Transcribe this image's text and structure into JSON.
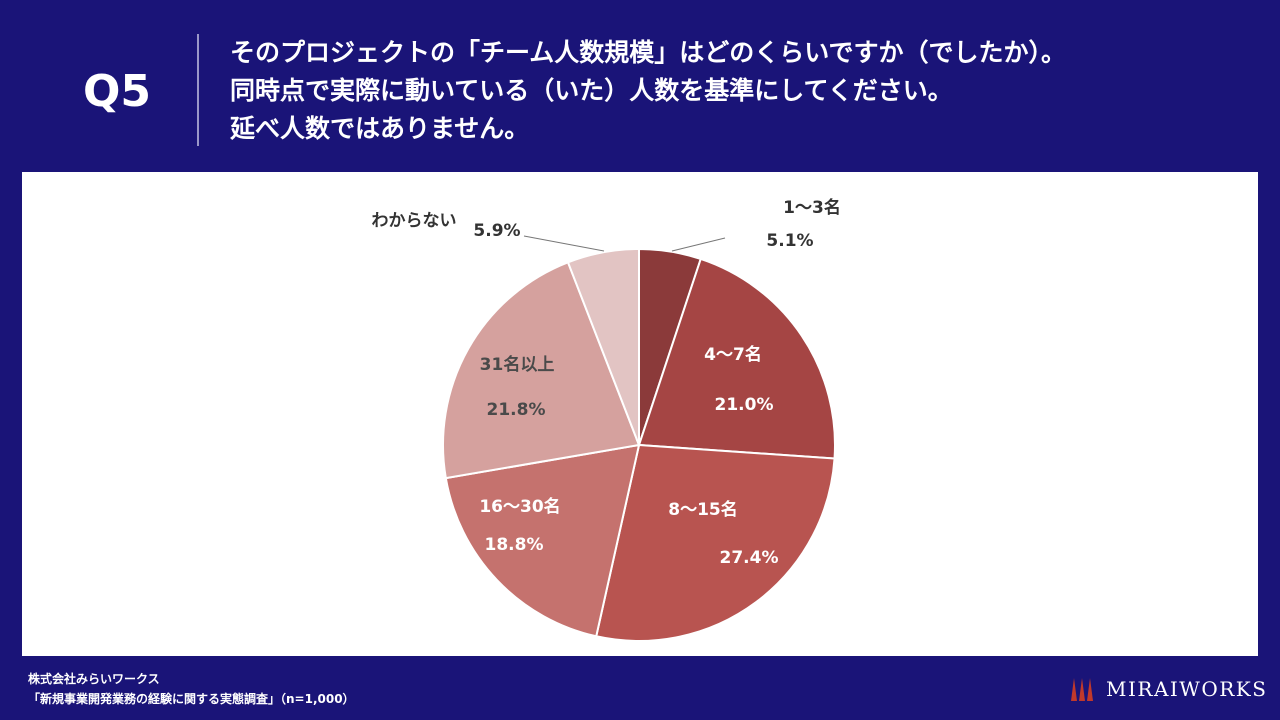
{
  "header": {
    "q_number": "Q5",
    "question_lines": [
      "そのプロジェクトの「チーム人数規模」はどのくらいですか（でしたか）。",
      "同時点で実際に動いている（いた）人数を基準にしてください。",
      "延べ人数ではありません。"
    ]
  },
  "chart_data": {
    "type": "pie",
    "title": "",
    "slices": [
      {
        "label": "1～3名",
        "value": 5.1,
        "display": "5.1%",
        "color": "#8b3a3a"
      },
      {
        "label": "4～7名",
        "value": 21.0,
        "display": "21.0%",
        "color": "#a54544"
      },
      {
        "label": "8～15名",
        "value": 27.4,
        "display": "27.4%",
        "color": "#b85450"
      },
      {
        "label": "16～30名",
        "value": 18.8,
        "display": "18.8%",
        "color": "#c5726e"
      },
      {
        "label": "31名以上",
        "value": 21.8,
        "display": "21.8%",
        "color": "#d5a19e"
      },
      {
        "label": "わからない",
        "value": 5.9,
        "display": "5.9%",
        "color": "#e2c4c3"
      }
    ]
  },
  "footer": {
    "company": "株式会社みらいワークス",
    "survey": "「新規事業開発業務の経験に関する実態調査」（n=1,000）",
    "logo_text": "MIRAIWORKS"
  }
}
